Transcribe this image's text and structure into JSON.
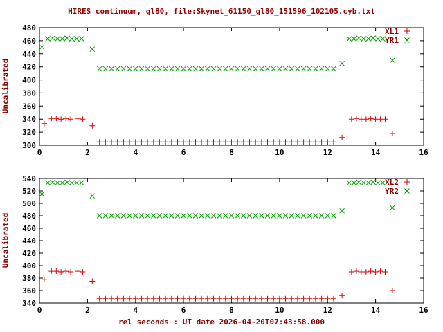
{
  "title": "HIRES continuum, gl80, file:Skynet_61150_gl80_151596_102105.cyb.txt",
  "xlabel": "rel seconds : UT date 2026-04-20T07:43:58.000",
  "colors": {
    "label_text": "#8b0000",
    "tick_text": "#000000",
    "axis": "#000000",
    "red": "#dd0000",
    "green": "#00a000"
  },
  "chart_data": [
    {
      "type": "scatter",
      "ylabel": "Uncalibrated",
      "ylim": [
        300,
        480
      ],
      "ytick": 20,
      "xlim": [
        0,
        16
      ],
      "xtick": 2,
      "legend_position": "top-right",
      "grid": false,
      "series": [
        {
          "name": "XL1",
          "color": "red",
          "marker": "plus",
          "points": [
            [
              0.2,
              333
            ],
            [
              0.5,
              341
            ],
            [
              0.7,
              341
            ],
            [
              0.9,
              340
            ],
            [
              1.1,
              341
            ],
            [
              1.3,
              340
            ],
            [
              1.6,
              341
            ],
            [
              1.8,
              340
            ],
            [
              2.2,
              330
            ],
            [
              2.5,
              305
            ],
            [
              2.75,
              305
            ],
            [
              3,
              305
            ],
            [
              3.25,
              305
            ],
            [
              3.5,
              305
            ],
            [
              3.75,
              305
            ],
            [
              4,
              305
            ],
            [
              4.25,
              305
            ],
            [
              4.5,
              305
            ],
            [
              4.75,
              305
            ],
            [
              5,
              305
            ],
            [
              5.25,
              305
            ],
            [
              5.5,
              305
            ],
            [
              5.75,
              305
            ],
            [
              6,
              305
            ],
            [
              6.25,
              305
            ],
            [
              6.5,
              305
            ],
            [
              6.75,
              305
            ],
            [
              7,
              305
            ],
            [
              7.25,
              305
            ],
            [
              7.5,
              305
            ],
            [
              7.75,
              305
            ],
            [
              8,
              305
            ],
            [
              8.25,
              305
            ],
            [
              8.5,
              305
            ],
            [
              8.75,
              305
            ],
            [
              9,
              305
            ],
            [
              9.25,
              305
            ],
            [
              9.5,
              305
            ],
            [
              9.75,
              305
            ],
            [
              10,
              305
            ],
            [
              10.25,
              305
            ],
            [
              10.5,
              305
            ],
            [
              10.75,
              305
            ],
            [
              11,
              305
            ],
            [
              11.25,
              305
            ],
            [
              11.5,
              305
            ],
            [
              11.75,
              305
            ],
            [
              12,
              305
            ],
            [
              12.25,
              305
            ],
            [
              12.6,
              312
            ],
            [
              13,
              340
            ],
            [
              13.2,
              341
            ],
            [
              13.4,
              340
            ],
            [
              13.6,
              340
            ],
            [
              13.8,
              341
            ],
            [
              14,
              340
            ],
            [
              14.2,
              340
            ],
            [
              14.4,
              340
            ],
            [
              14.7,
              318
            ]
          ]
        },
        {
          "name": "YR1",
          "color": "green",
          "marker": "cross",
          "points": [
            [
              0.1,
              450
            ],
            [
              0.35,
              463
            ],
            [
              0.55,
              464
            ],
            [
              0.75,
              463
            ],
            [
              0.95,
              463
            ],
            [
              1.15,
              464
            ],
            [
              1.35,
              463
            ],
            [
              1.55,
              463
            ],
            [
              1.75,
              463
            ],
            [
              2.2,
              447
            ],
            [
              2.5,
              417
            ],
            [
              2.75,
              417
            ],
            [
              3,
              417
            ],
            [
              3.25,
              417
            ],
            [
              3.5,
              417
            ],
            [
              3.75,
              417
            ],
            [
              4,
              417
            ],
            [
              4.25,
              417
            ],
            [
              4.5,
              417
            ],
            [
              4.75,
              417
            ],
            [
              5,
              417
            ],
            [
              5.25,
              417
            ],
            [
              5.5,
              417
            ],
            [
              5.75,
              417
            ],
            [
              6,
              417
            ],
            [
              6.25,
              417
            ],
            [
              6.5,
              417
            ],
            [
              6.75,
              417
            ],
            [
              7,
              417
            ],
            [
              7.25,
              417
            ],
            [
              7.5,
              417
            ],
            [
              7.75,
              417
            ],
            [
              8,
              417
            ],
            [
              8.25,
              417
            ],
            [
              8.5,
              417
            ],
            [
              8.75,
              417
            ],
            [
              9,
              417
            ],
            [
              9.25,
              417
            ],
            [
              9.5,
              417
            ],
            [
              9.75,
              417
            ],
            [
              10,
              417
            ],
            [
              10.25,
              417
            ],
            [
              10.5,
              417
            ],
            [
              10.75,
              417
            ],
            [
              11,
              417
            ],
            [
              11.25,
              417
            ],
            [
              11.5,
              417
            ],
            [
              11.75,
              417
            ],
            [
              12,
              417
            ],
            [
              12.25,
              417
            ],
            [
              12.6,
              425
            ],
            [
              12.9,
              463
            ],
            [
              13.1,
              463
            ],
            [
              13.3,
              464
            ],
            [
              13.5,
              463
            ],
            [
              13.7,
              463
            ],
            [
              13.9,
              464
            ],
            [
              14.1,
              463
            ],
            [
              14.3,
              463
            ],
            [
              14.7,
              430
            ]
          ]
        }
      ]
    },
    {
      "type": "scatter",
      "ylabel": "Uncalibrated",
      "ylim": [
        340,
        540
      ],
      "ytick": 20,
      "xlim": [
        0,
        16
      ],
      "xtick": 2,
      "legend_position": "top-right",
      "grid": false,
      "series": [
        {
          "name": "XL2",
          "color": "red",
          "marker": "plus",
          "points": [
            [
              0.2,
              378
            ],
            [
              0.5,
              391
            ],
            [
              0.7,
              391
            ],
            [
              0.9,
              390
            ],
            [
              1.1,
              391
            ],
            [
              1.3,
              390
            ],
            [
              1.6,
              391
            ],
            [
              1.8,
              390
            ],
            [
              2.2,
              375
            ],
            [
              2.5,
              347
            ],
            [
              2.75,
              347
            ],
            [
              3,
              347
            ],
            [
              3.25,
              347
            ],
            [
              3.5,
              347
            ],
            [
              3.75,
              347
            ],
            [
              4,
              347
            ],
            [
              4.25,
              347
            ],
            [
              4.5,
              347
            ],
            [
              4.75,
              347
            ],
            [
              5,
              347
            ],
            [
              5.25,
              347
            ],
            [
              5.5,
              347
            ],
            [
              5.75,
              347
            ],
            [
              6,
              347
            ],
            [
              6.25,
              347
            ],
            [
              6.5,
              347
            ],
            [
              6.75,
              347
            ],
            [
              7,
              347
            ],
            [
              7.25,
              347
            ],
            [
              7.5,
              347
            ],
            [
              7.75,
              347
            ],
            [
              8,
              347
            ],
            [
              8.25,
              347
            ],
            [
              8.5,
              347
            ],
            [
              8.75,
              347
            ],
            [
              9,
              347
            ],
            [
              9.25,
              347
            ],
            [
              9.5,
              347
            ],
            [
              9.75,
              347
            ],
            [
              10,
              347
            ],
            [
              10.25,
              347
            ],
            [
              10.5,
              347
            ],
            [
              10.75,
              347
            ],
            [
              11,
              347
            ],
            [
              11.25,
              347
            ],
            [
              11.5,
              347
            ],
            [
              11.75,
              347
            ],
            [
              12,
              347
            ],
            [
              12.25,
              347
            ],
            [
              12.6,
              352
            ],
            [
              13,
              390
            ],
            [
              13.2,
              391
            ],
            [
              13.4,
              390
            ],
            [
              13.6,
              390
            ],
            [
              13.8,
              391
            ],
            [
              14,
              390
            ],
            [
              14.2,
              391
            ],
            [
              14.4,
              390
            ],
            [
              14.7,
              360
            ]
          ]
        },
        {
          "name": "YR2",
          "color": "green",
          "marker": "cross",
          "points": [
            [
              0.1,
              515
            ],
            [
              0.35,
              533
            ],
            [
              0.55,
              534
            ],
            [
              0.75,
              533
            ],
            [
              0.95,
              533
            ],
            [
              1.15,
              534
            ],
            [
              1.35,
              533
            ],
            [
              1.55,
              533
            ],
            [
              1.75,
              533
            ],
            [
              2.2,
              512
            ],
            [
              2.5,
              480
            ],
            [
              2.75,
              480
            ],
            [
              3,
              480
            ],
            [
              3.25,
              480
            ],
            [
              3.5,
              480
            ],
            [
              3.75,
              480
            ],
            [
              4,
              480
            ],
            [
              4.25,
              480
            ],
            [
              4.5,
              480
            ],
            [
              4.75,
              480
            ],
            [
              5,
              480
            ],
            [
              5.25,
              480
            ],
            [
              5.5,
              480
            ],
            [
              5.75,
              480
            ],
            [
              6,
              480
            ],
            [
              6.25,
              480
            ],
            [
              6.5,
              480
            ],
            [
              6.75,
              480
            ],
            [
              7,
              480
            ],
            [
              7.25,
              480
            ],
            [
              7.5,
              480
            ],
            [
              7.75,
              480
            ],
            [
              8,
              480
            ],
            [
              8.25,
              480
            ],
            [
              8.5,
              480
            ],
            [
              8.75,
              480
            ],
            [
              9,
              480
            ],
            [
              9.25,
              480
            ],
            [
              9.5,
              480
            ],
            [
              9.75,
              480
            ],
            [
              10,
              480
            ],
            [
              10.25,
              480
            ],
            [
              10.5,
              480
            ],
            [
              10.75,
              480
            ],
            [
              11,
              480
            ],
            [
              11.25,
              480
            ],
            [
              11.5,
              480
            ],
            [
              11.75,
              480
            ],
            [
              12,
              480
            ],
            [
              12.25,
              480
            ],
            [
              12.6,
              488
            ],
            [
              12.9,
              533
            ],
            [
              13.1,
              533
            ],
            [
              13.3,
              534
            ],
            [
              13.5,
              533
            ],
            [
              13.7,
              533
            ],
            [
              13.9,
              534
            ],
            [
              14.1,
              533
            ],
            [
              14.3,
              533
            ],
            [
              14.7,
              493
            ]
          ]
        }
      ]
    }
  ]
}
